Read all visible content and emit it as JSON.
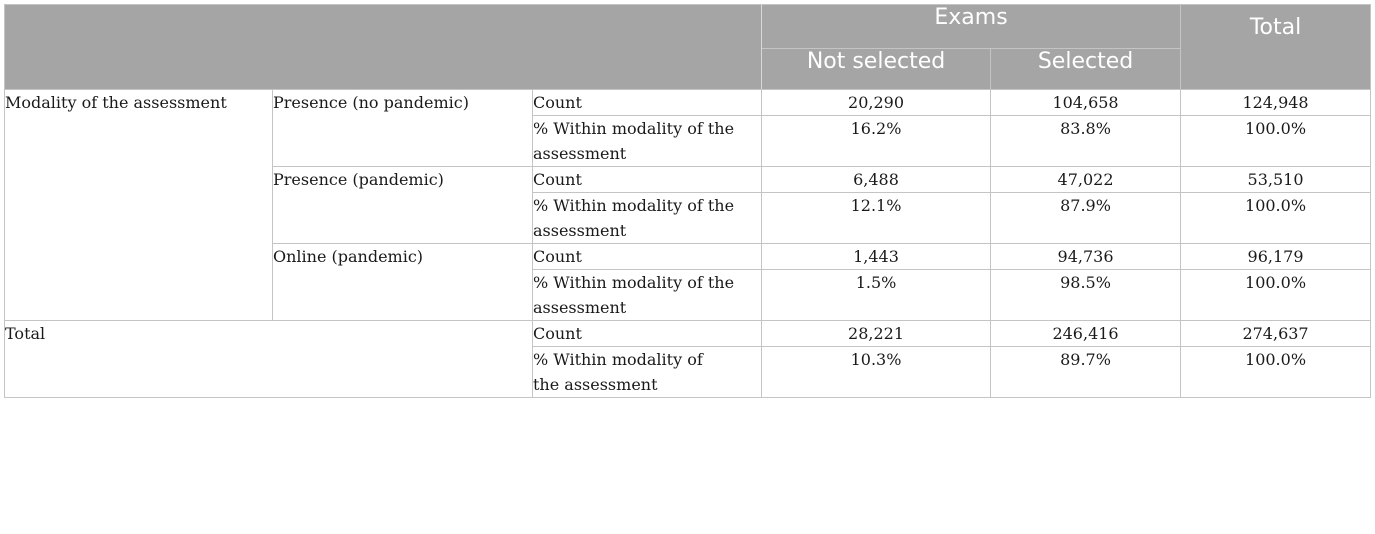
{
  "header": {
    "group_label": "Exams",
    "total_label": "Total",
    "not_selected_label": "Not selected",
    "selected_label": "Selected"
  },
  "body": {
    "variable_label": "Modality of the assessment",
    "groups": [
      {
        "label": "Presence (no pandemic)",
        "count_label": "Count",
        "pct_label": "% Within modality of the assessment",
        "count": {
          "not_selected": "20,290",
          "selected": "104,658",
          "total": "124,948"
        },
        "pct": {
          "not_selected": "16.2%",
          "selected": "83.8%",
          "total": "100.0%"
        }
      },
      {
        "label": "Presence (pandemic)",
        "count_label": "Count",
        "pct_label": "% Within modality of the assessment",
        "count": {
          "not_selected": "6,488",
          "selected": "47,022",
          "total": "53,510"
        },
        "pct": {
          "not_selected": "12.1%",
          "selected": "87.9%",
          "total": "100.0%"
        }
      },
      {
        "label": "Online (pandemic)",
        "count_label": "Count",
        "pct_label": "% Within modality of the assessment",
        "count": {
          "not_selected": "1,443",
          "selected": "94,736",
          "total": "96,179"
        },
        "pct": {
          "not_selected": "1.5%",
          "selected": "98.5%",
          "total": "100.0%"
        }
      }
    ],
    "total": {
      "label": "Total",
      "count_label": "Count",
      "pct_label": "% Within modality of the assessment",
      "count": {
        "not_selected": "28,221",
        "selected": "246,416",
        "total": "274,637"
      },
      "pct": {
        "not_selected": "10.3%",
        "selected": "89.7%",
        "total": "100.0%"
      }
    }
  }
}
